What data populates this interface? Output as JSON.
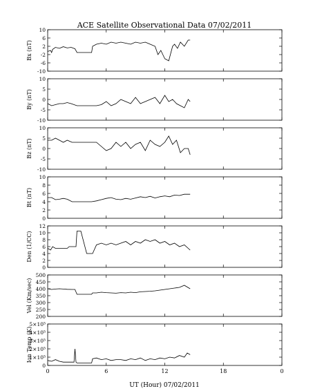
{
  "figure": {
    "title": "ACE Satellite Observational Data   07/02/2011",
    "xlabel": "UT (Hour)   07/02/2011",
    "x_ticks": [
      "0",
      "6",
      "12",
      "18",
      "0"
    ],
    "x_range": [
      0,
      24
    ]
  },
  "chart_data": [
    {
      "type": "line",
      "ylabel": "Bx (nT)",
      "ylim": [
        -10,
        10
      ],
      "y_ticks": [
        {
          "v": 10,
          "l": "10"
        },
        {
          "v": 6,
          "l": "6"
        },
        {
          "v": 2,
          "l": "2"
        },
        {
          "v": -2,
          "l": "-2"
        },
        {
          "v": -6,
          "l": "-6"
        },
        {
          "v": -10,
          "l": "-10"
        }
      ],
      "series": [
        {
          "x": [
            0,
            0.3,
            0.4,
            0.5,
            0.8,
            1.2,
            1.6,
            2.0,
            2.4,
            2.8,
            3.0,
            3.4,
            4.0,
            4.5,
            4.6,
            5.0,
            5.5,
            6.0,
            6.5,
            7.0,
            7.5,
            8.0,
            8.5,
            9.0,
            9.5,
            10.0,
            10.5,
            11.0,
            11.3,
            11.6,
            12.0,
            12.4,
            12.8,
            13.0,
            13.3,
            13.6,
            14.0,
            14.4,
            14.6
          ],
          "y": [
            -0.5,
            0,
            -1,
            0.5,
            1.5,
            1,
            1.8,
            1.2,
            1.5,
            0.8,
            -1,
            -1,
            -1,
            -1,
            2,
            3,
            3.5,
            3,
            4,
            3.5,
            4,
            3.5,
            3,
            4,
            3.5,
            4,
            3,
            2,
            -2,
            0,
            -4,
            -5,
            2,
            3,
            1,
            4,
            2,
            5,
            5
          ]
        }
      ]
    },
    {
      "type": "line",
      "ylabel": "By (nT)",
      "ylim": [
        -10,
        10
      ],
      "y_ticks": [
        {
          "v": 10,
          "l": "10"
        },
        {
          "v": 5,
          "l": "5"
        },
        {
          "v": 0,
          "l": "0"
        },
        {
          "v": -5,
          "l": "-5"
        },
        {
          "v": -10,
          "l": "-10"
        }
      ],
      "series": [
        {
          "x": [
            0,
            0.4,
            0.8,
            1.2,
            1.6,
            2.0,
            2.4,
            3.0,
            3.5,
            4.0,
            4.5,
            5.0,
            5.5,
            6.0,
            6.5,
            7.0,
            7.5,
            8.0,
            8.5,
            9.0,
            9.5,
            10.0,
            10.5,
            11.0,
            11.5,
            12.0,
            12.4,
            12.8,
            13.2,
            13.6,
            14.0,
            14.4,
            14.6
          ],
          "y": [
            -2,
            -3,
            -2.5,
            -2,
            -2,
            -1.5,
            -2,
            -3,
            -3,
            -3,
            -3,
            -3,
            -2.5,
            -1,
            -3,
            -2,
            0,
            -1,
            -2,
            1,
            -2,
            -1,
            0,
            1,
            -2,
            2,
            -1,
            0,
            -2,
            -3,
            -4,
            0,
            -1
          ]
        }
      ]
    },
    {
      "type": "line",
      "ylabel": "Bz (nT)",
      "ylim": [
        -10,
        10
      ],
      "y_ticks": [
        {
          "v": 10,
          "l": "10"
        },
        {
          "v": 5,
          "l": "5"
        },
        {
          "v": 0,
          "l": "0"
        },
        {
          "v": -5,
          "l": "-5"
        },
        {
          "v": -10,
          "l": "-10"
        }
      ],
      "series": [
        {
          "x": [
            0,
            0.4,
            0.8,
            1.2,
            1.6,
            2.0,
            2.5,
            3.0,
            3.5,
            4.0,
            4.5,
            5.0,
            5.5,
            6.0,
            6.5,
            7.0,
            7.5,
            8.0,
            8.5,
            9.0,
            9.5,
            10.0,
            10.5,
            11.0,
            11.5,
            12.0,
            12.4,
            12.8,
            13.2,
            13.6,
            14.0,
            14.4,
            14.6
          ],
          "y": [
            4,
            4,
            5,
            4,
            3,
            4,
            3,
            3,
            3,
            3,
            3,
            3,
            1,
            -1,
            0,
            3,
            1,
            3,
            0,
            2,
            3,
            -1,
            4,
            2,
            1,
            3,
            6,
            2,
            4,
            -2,
            0,
            0,
            -3
          ]
        }
      ]
    },
    {
      "type": "line",
      "ylabel": "Bt (nT)",
      "ylim": [
        0,
        10
      ],
      "y_ticks": [
        {
          "v": 10,
          "l": "10"
        },
        {
          "v": 8,
          "l": "8"
        },
        {
          "v": 6,
          "l": "6"
        },
        {
          "v": 4,
          "l": "4"
        },
        {
          "v": 2,
          "l": "2"
        },
        {
          "v": 0,
          "l": "0"
        }
      ],
      "series": [
        {
          "x": [
            0,
            0.4,
            0.8,
            1.2,
            1.6,
            2.0,
            2.5,
            3.0,
            3.5,
            4.0,
            4.5,
            5.0,
            5.5,
            6.0,
            6.5,
            7.0,
            7.5,
            8.0,
            8.5,
            9.0,
            9.5,
            10.0,
            10.5,
            11.0,
            11.5,
            12.0,
            12.5,
            13.0,
            13.5,
            14.0,
            14.6
          ],
          "y": [
            5,
            5,
            4.5,
            4.6,
            4.8,
            4.6,
            4,
            4,
            4,
            4,
            4,
            4.2,
            4.5,
            4.8,
            5,
            4.6,
            4.5,
            4.8,
            4.6,
            4.9,
            5.2,
            5,
            5.3,
            4.9,
            5.2,
            5.4,
            5.2,
            5.6,
            5.5,
            5.8,
            5.8
          ]
        }
      ]
    },
    {
      "type": "line",
      "ylabel": "Den (1/CC)",
      "ylim": [
        0,
        12
      ],
      "y_ticks": [
        {
          "v": 12,
          "l": "12"
        },
        {
          "v": 10,
          "l": "10"
        },
        {
          "v": 8,
          "l": "8"
        },
        {
          "v": 6,
          "l": "6"
        },
        {
          "v": 4,
          "l": "4"
        },
        {
          "v": 2,
          "l": "2"
        },
        {
          "v": 0,
          "l": "0"
        }
      ],
      "series": [
        {
          "x": [
            0,
            0.3,
            0.5,
            0.8,
            1.2,
            1.6,
            2.0,
            2.2,
            2.4,
            2.6,
            2.9,
            3.0,
            3.4,
            4.0,
            4.5,
            4.6,
            5.0,
            5.5,
            6.0,
            6.5,
            7.0,
            7.5,
            8.0,
            8.5,
            9.0,
            9.5,
            10.0,
            10.5,
            11.0,
            11.5,
            12.0,
            12.5,
            13.0,
            13.5,
            14.0,
            14.6
          ],
          "y": [
            5.5,
            5,
            6,
            5.5,
            5.5,
            5.5,
            5.5,
            6,
            6,
            6,
            6,
            10.5,
            10.5,
            4,
            4,
            4,
            6.5,
            7,
            6.5,
            7,
            6.5,
            7,
            7.5,
            6.5,
            7.5,
            7,
            8,
            7.5,
            8,
            7,
            7.5,
            6.5,
            7,
            6,
            6.5,
            5
          ]
        }
      ]
    },
    {
      "type": "line",
      "ylabel": "Vel (Km/sec)",
      "ylim": [
        200,
        500
      ],
      "y_ticks": [
        {
          "v": 500,
          "l": "500"
        },
        {
          "v": 450,
          "l": "450"
        },
        {
          "v": 400,
          "l": "400"
        },
        {
          "v": 350,
          "l": "350"
        },
        {
          "v": 300,
          "l": "300"
        },
        {
          "v": 250,
          "l": "250"
        },
        {
          "v": 200,
          "l": "200"
        }
      ],
      "series": [
        {
          "x": [
            0,
            0.4,
            0.8,
            1.2,
            1.6,
            2.0,
            2.5,
            2.8,
            3.0,
            3.2,
            3.4,
            4.0,
            4.5,
            4.6,
            5.0,
            5.5,
            6.0,
            6.5,
            7.0,
            7.5,
            8.0,
            8.5,
            9.0,
            9.5,
            10.0,
            10.5,
            11.0,
            11.5,
            12.0,
            12.5,
            13.0,
            13.5,
            14.0,
            14.6
          ],
          "y": [
            400,
            395,
            398,
            400,
            398,
            396,
            395,
            395,
            360,
            360,
            360,
            360,
            360,
            370,
            370,
            375,
            372,
            370,
            368,
            372,
            370,
            375,
            372,
            378,
            380,
            382,
            385,
            390,
            395,
            400,
            405,
            410,
            425,
            400
          ]
        }
      ]
    },
    {
      "type": "line",
      "ylabel": "Ion Temp (K)",
      "ylim": [
        0,
        500000
      ],
      "y_ticks": [
        {
          "v": 500000,
          "l": "5×10⁵"
        },
        {
          "v": 400000,
          "l": "4×10⁵"
        },
        {
          "v": 300000,
          "l": "3×10⁵"
        },
        {
          "v": 200000,
          "l": "2×10⁵"
        },
        {
          "v": 100000,
          "l": "1×10⁵"
        },
        {
          "v": 0,
          "l": "0"
        }
      ],
      "series": [
        {
          "x": [
            0,
            0.4,
            0.8,
            1.2,
            1.6,
            2.0,
            2.4,
            2.7,
            2.8,
            2.9,
            3.0,
            3.4,
            4.0,
            4.5,
            4.6,
            5.0,
            5.5,
            6.0,
            6.5,
            7.0,
            7.5,
            8.0,
            8.5,
            9.0,
            9.5,
            10.0,
            10.5,
            11.0,
            11.5,
            12.0,
            12.5,
            13.0,
            13.5,
            14.0,
            14.3,
            14.6
          ],
          "y": [
            60000,
            50000,
            70000,
            50000,
            40000,
            40000,
            40000,
            40000,
            200000,
            40000,
            30000,
            30000,
            30000,
            30000,
            80000,
            90000,
            70000,
            80000,
            60000,
            70000,
            70000,
            60000,
            80000,
            70000,
            90000,
            60000,
            80000,
            70000,
            90000,
            80000,
            100000,
            90000,
            120000,
            100000,
            150000,
            130000
          ]
        }
      ]
    }
  ]
}
